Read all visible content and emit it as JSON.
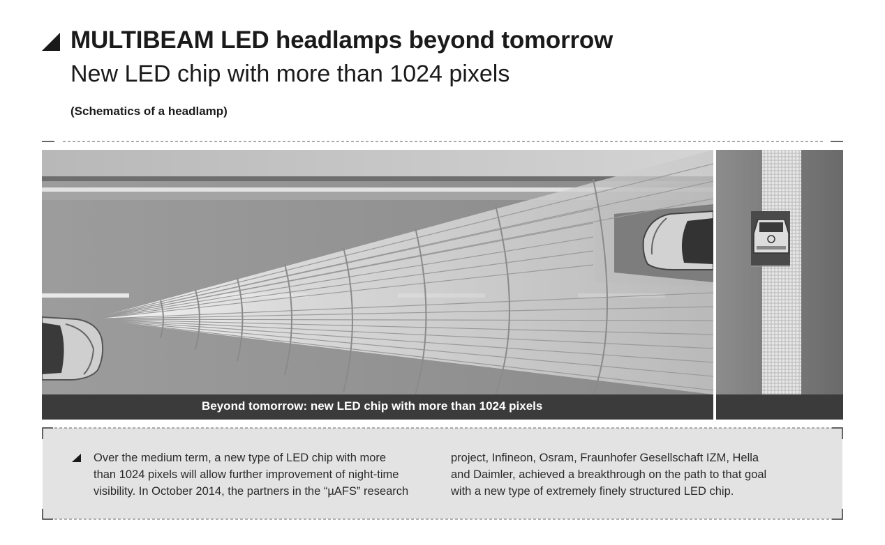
{
  "header": {
    "title": "MULTIBEAM LED headlamps beyond tomorrow",
    "subtitle": "New LED chip with more than 1024 pixels",
    "note": "(Schematics of a headlamp)"
  },
  "diagram": {
    "caption": "Beyond tomorrow: new LED chip with more than 1024 pixels",
    "elements": [
      "own-car",
      "light-beam",
      "oncoming-car",
      "led-pixel-grid"
    ]
  },
  "info": {
    "column1": [
      "Over the medium term, a new type of LED chip with more",
      "than 1024 pixels will allow further improvement of night-time",
      "visibility. In October 2014, the partners in the “µAFS” research"
    ],
    "column2": [
      "project, Infineon, Osram, Fraunhofer Gesellschaft IZM, Hella",
      "and Daimler, achieved a breakthrough on the path to that goal",
      "with a new type of extremely finely structured LED chip."
    ]
  },
  "colors": {
    "dark_bar": "#3b3b3b",
    "box_bg": "#e3e3e3",
    "text": "#1a1a1a"
  }
}
